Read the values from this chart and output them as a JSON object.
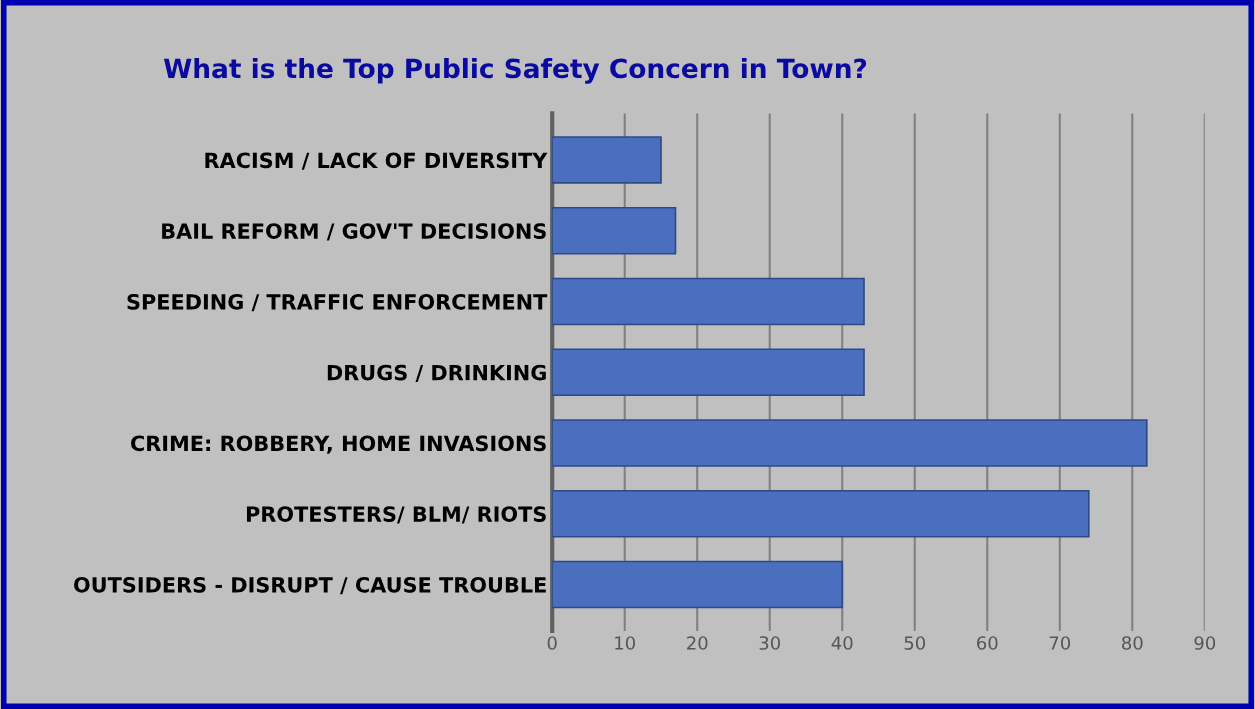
{
  "chart_data": {
    "type": "bar",
    "orientation": "horizontal",
    "title": "What is the Top Public Safety Concern in Town?",
    "categories": [
      "RACISM / LACK OF DIVERSITY",
      "BAIL REFORM / GOV'T DECISIONS",
      "SPEEDING / TRAFFIC ENFORCEMENT",
      "DRUGS / DRINKING",
      "CRIME: ROBBERY, HOME INVASIONS",
      "PROTESTERS/ BLM/ RIOTS",
      "OUTSIDERS - DISRUPT / CAUSE TROUBLE"
    ],
    "values": [
      15,
      17,
      43,
      43,
      82,
      74,
      40
    ],
    "color": "#4a6fbf",
    "xlim": [
      0,
      90
    ],
    "xticks": [
      0,
      10,
      20,
      30,
      40,
      50,
      60,
      70,
      80,
      90
    ],
    "grid": "x"
  }
}
